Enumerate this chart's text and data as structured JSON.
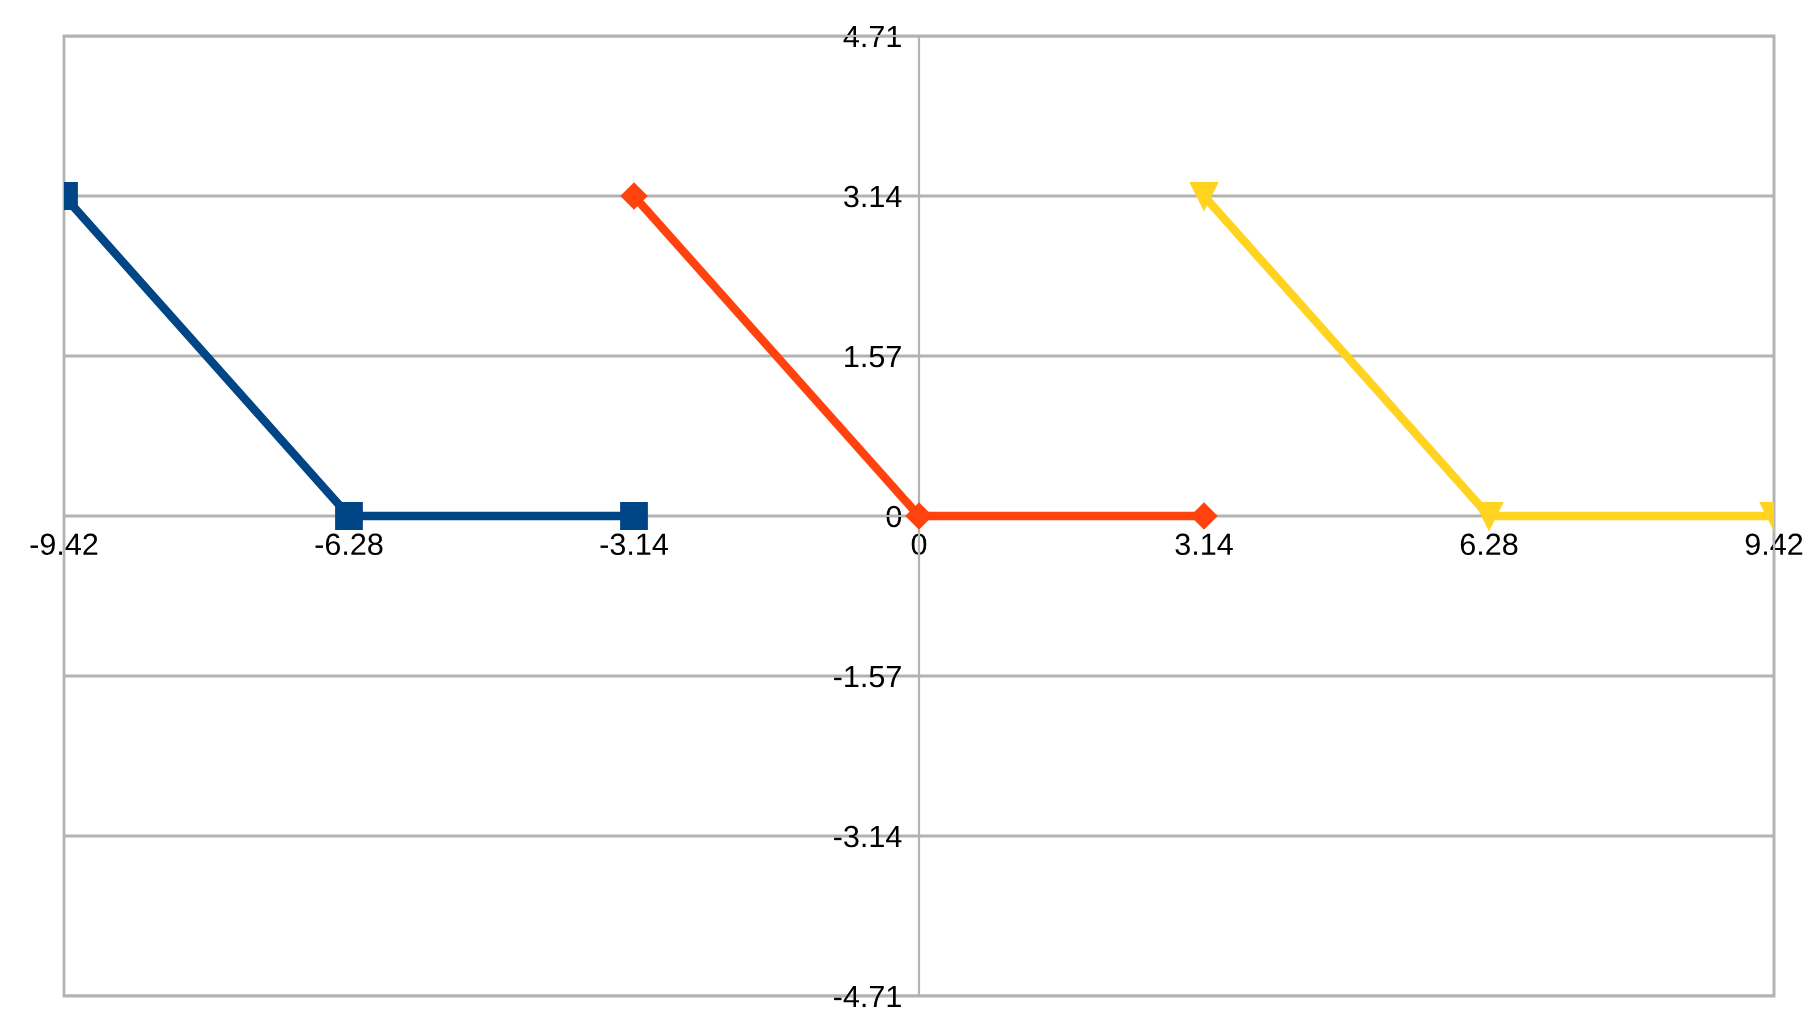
{
  "chart_data": {
    "type": "line",
    "xlim": [
      -9.42,
      9.42
    ],
    "ylim": [
      -4.71,
      4.71
    ],
    "xticks": [
      -9.42,
      -6.28,
      -3.14,
      0,
      3.14,
      6.28,
      9.42
    ],
    "yticks": [
      -4.71,
      -3.14,
      -1.57,
      0,
      1.57,
      3.14,
      4.71
    ],
    "grid": "y",
    "legend": false,
    "series": [
      {
        "color": "#004586",
        "marker": "square",
        "x": [
          -9.42,
          -6.28,
          -3.14
        ],
        "values": [
          3.14,
          0,
          0
        ]
      },
      {
        "color": "#ff420e",
        "marker": "diamond",
        "x": [
          -3.14,
          0,
          3.14
        ],
        "values": [
          3.14,
          0,
          0
        ]
      },
      {
        "color": "#ffd320",
        "marker": "triangle",
        "x": [
          3.14,
          6.28,
          9.42
        ],
        "values": [
          3.14,
          0,
          0
        ]
      }
    ]
  }
}
